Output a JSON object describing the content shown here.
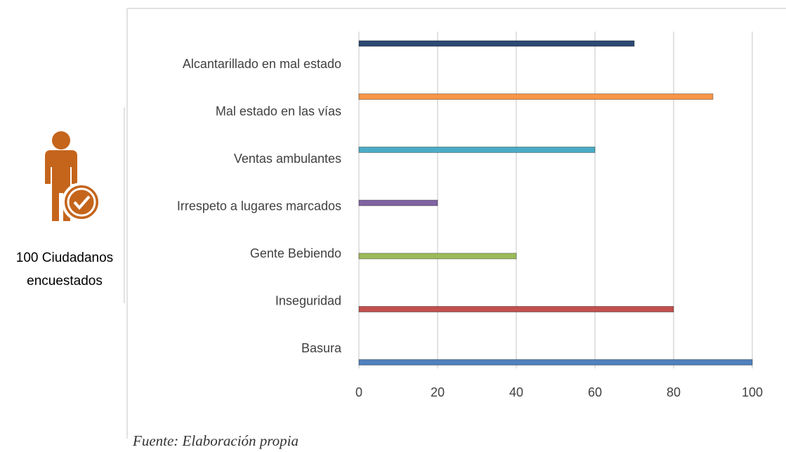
{
  "chart_data": {
    "type": "hbar",
    "categories": [
      "Alcantarillado en mal estado",
      "Mal estado en las vías",
      "Ventas ambulantes",
      "Irrespeto a lugares marcados",
      "Gente Bebiendo",
      "Inseguridad",
      "Basura"
    ],
    "values": [
      70,
      90,
      60,
      20,
      40,
      80,
      100
    ],
    "colors": [
      "#2c4a72",
      "#f79646",
      "#4bacc6",
      "#8064a2",
      "#9bbb59",
      "#c0504d",
      "#4f81bd"
    ],
    "xlim": [
      0,
      100
    ],
    "xticks": [
      0,
      20,
      40,
      60,
      80,
      100
    ],
    "grid": true,
    "annotations": [
      "100 Ciudadanos",
      "encuestados"
    ],
    "source": "Fuente: Elaboración propia"
  }
}
